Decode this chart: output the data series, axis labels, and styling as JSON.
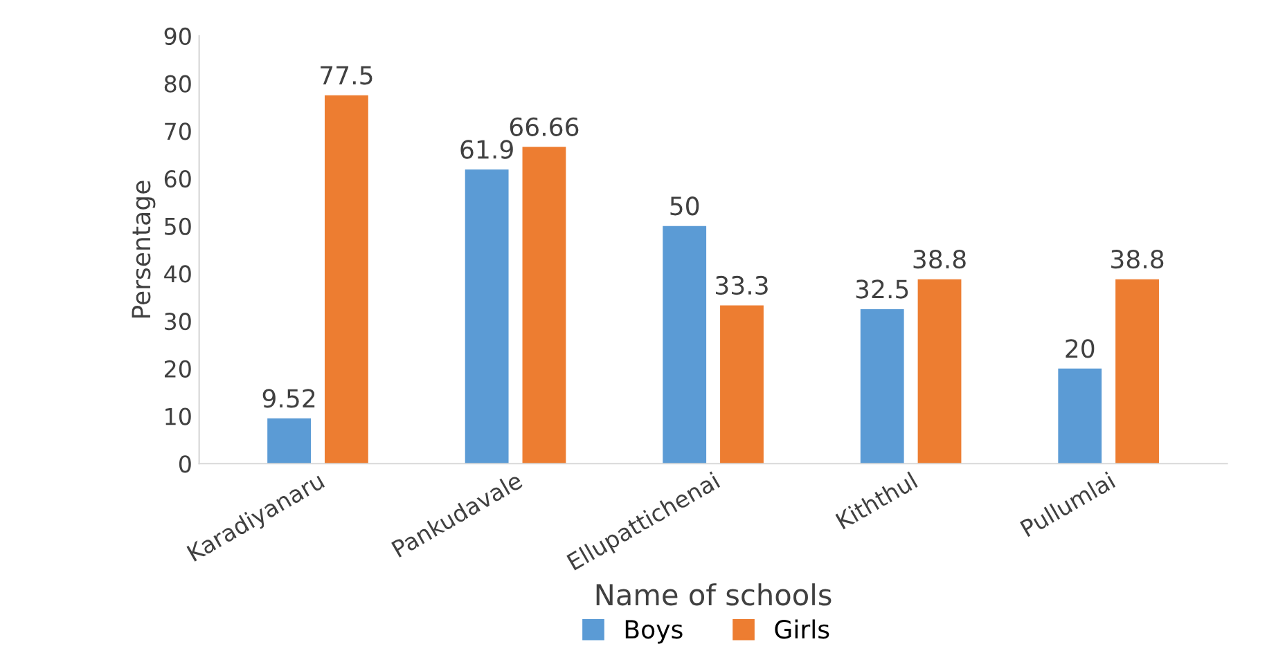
{
  "chart_data": {
    "type": "bar",
    "xlabel": "Name of schools",
    "ylabel": "Persentage",
    "categories": [
      "Karadiyanaru",
      "Pankudavale",
      "Ellupattichenai",
      "Kiththul",
      "Pullumlai"
    ],
    "series": [
      {
        "name": "Boys",
        "color": "#5b9bd5",
        "values": [
          9.52,
          61.9,
          50,
          32.5,
          20
        ]
      },
      {
        "name": "Girls",
        "color": "#ed7d31",
        "values": [
          77.5,
          66.66,
          33.3,
          38.8,
          38.8
        ]
      }
    ],
    "ylim": [
      0,
      90
    ],
    "yticks": [
      0,
      10,
      20,
      30,
      40,
      50,
      60,
      70,
      80,
      90
    ],
    "data_labels": true,
    "grid": false,
    "legend": "bottom"
  }
}
